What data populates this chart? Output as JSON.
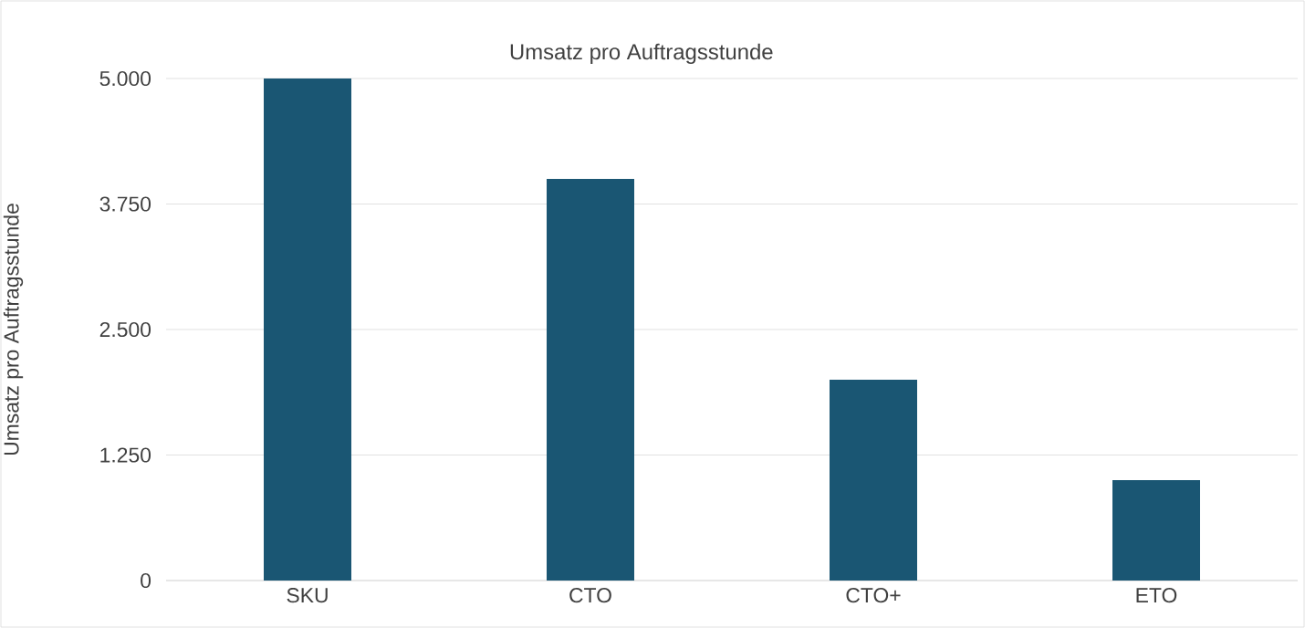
{
  "chart_data": {
    "type": "bar",
    "title": "Umsatz pro Auftragsstunde",
    "ylabel": "Umsatz pro Auftragsstunde",
    "categories": [
      "SKU",
      "CTO",
      "CTO+",
      "ETO"
    ],
    "values": [
      5000,
      4000,
      2000,
      1000
    ],
    "color": "#1a5673",
    "ylim": [
      0,
      5000
    ],
    "yticks": [
      {
        "value": 0,
        "label": "0"
      },
      {
        "value": 1250,
        "label": "1.250"
      },
      {
        "value": 2500,
        "label": "2.500"
      },
      {
        "value": 3750,
        "label": "3.750"
      },
      {
        "value": 5000,
        "label": "5.000"
      }
    ],
    "grid": "y"
  }
}
